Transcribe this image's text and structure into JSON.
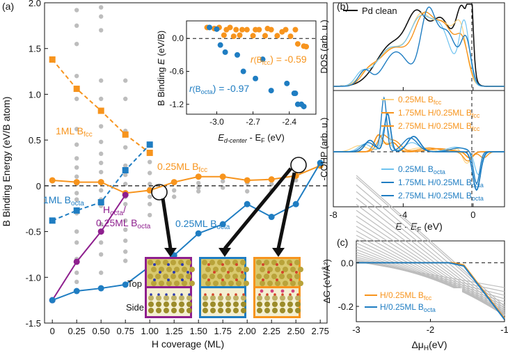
{
  "colors": {
    "orange": "#F7941D",
    "blue": "#1F7DC2",
    "purple": "#8E1F8E",
    "grey": "#BDBDBD",
    "black": "#111111",
    "lightorange": "#FFD27F",
    "lightblue": "#6FC3F0"
  },
  "panel_labels": {
    "a": "(a)",
    "b": "(b)",
    "c": "(c)"
  },
  "chart_data": [
    {
      "type": "scatter",
      "panel": "(a)",
      "xlabel": "H coverage (ML)",
      "ylabel": "B Binding Energy (eV/B atom)",
      "xlim": [
        -0.08,
        2.82
      ],
      "ylim": [
        -1.5,
        2.0
      ],
      "xticks": [
        "0",
        "0.25",
        "0.50",
        "0.75",
        "1.00",
        "1.25",
        "1.50",
        "1.75",
        "2.00",
        "2.25",
        "2.50",
        "2.75"
      ],
      "yticks": [
        "-1.5",
        "-1.0",
        "-0.5",
        "0",
        "0.5",
        "1.0",
        "1.5",
        "2.0"
      ],
      "series": [
        {
          "name": "1ML Bfcc",
          "label_main": "1ML B",
          "label_sub": "fcc",
          "color_key": "orange",
          "style": "dashed",
          "marker": "square",
          "x": [
            0,
            0.25,
            0.5,
            0.75,
            1.0
          ],
          "y": [
            1.38,
            1.06,
            0.82,
            0.56,
            0.36
          ]
        },
        {
          "name": "1ML Bocta",
          "label_main": "1ML B",
          "label_sub": "octa",
          "color_key": "blue",
          "style": "dashed",
          "marker": "square",
          "x": [
            0,
            0.25,
            0.5,
            0.75,
            1.0
          ],
          "y": [
            -0.38,
            -0.27,
            -0.18,
            0.17,
            0.45
          ]
        },
        {
          "name": "0.25ML Bfcc",
          "label_main": "0.25ML B",
          "label_sub": "fcc",
          "color_key": "orange",
          "style": "solid",
          "marker": "circle",
          "x": [
            0,
            0.25,
            0.5,
            0.75,
            1.0,
            1.25,
            1.5,
            1.75,
            2.0,
            2.25,
            2.5,
            2.75
          ],
          "y": [
            0.06,
            0.04,
            0.04,
            -0.08,
            -0.05,
            0.04,
            0.1,
            0.1,
            0.06,
            0.07,
            0.11,
            0.22
          ]
        },
        {
          "name": "Hocta/0.25ML Bocta",
          "label_main": "H",
          "label_sub": "octa",
          "label_tail": "/",
          "label_line2": "0.25ML B",
          "label_sub2": "octa",
          "color_key": "purple",
          "style": "solid",
          "marker": "circle",
          "x": [
            0,
            0.25,
            0.5,
            0.75
          ],
          "y": [
            -1.25,
            -0.83,
            -0.5,
            -0.1
          ]
        },
        {
          "name": "0.25ML Bocta",
          "label_main": "0.25ML B",
          "label_sub": "octa",
          "color_key": "blue",
          "style": "solid",
          "marker": "circle",
          "x": [
            0,
            0.25,
            0.5,
            0.75,
            1.0,
            1.25,
            1.5,
            1.75,
            2.0,
            2.25,
            2.5,
            2.75
          ],
          "y": [
            -1.25,
            -1.15,
            -1.12,
            -1.08,
            -0.88,
            -0.76,
            -0.52,
            -0.42,
            -0.2,
            -0.34,
            -0.2,
            0.25
          ]
        }
      ],
      "grey_scatter": [
        {
          "x": 0.25,
          "y": [
            1.92,
            1.75,
            1.55,
            1.2,
            0.95,
            0.62,
            0.45,
            0.3,
            0.2,
            0.1,
            0.02,
            -0.08,
            -0.15,
            -0.3,
            -0.5,
            -0.62,
            -0.8,
            -0.95,
            -1.05
          ]
        },
        {
          "x": 0.5,
          "y": [
            1.95,
            1.85,
            1.7,
            1.15,
            0.95,
            0.65,
            0.48,
            0.35,
            0.25,
            0.15,
            0.05,
            -0.05,
            -0.15,
            -0.22,
            -0.42,
            -0.62,
            -0.75,
            -0.95
          ]
        },
        {
          "x": 0.75,
          "y": [
            1.15,
            0.95,
            0.6,
            0.42,
            0.22,
            0.12,
            0.02,
            -0.12,
            -0.2,
            -0.38,
            -0.48,
            -0.6,
            -0.72,
            -0.82
          ]
        },
        {
          "x": 1.0,
          "y": [
            0.26,
            0.14,
            0.02,
            -0.03,
            -0.12,
            -0.2,
            -0.32
          ]
        },
        {
          "x": 1.25,
          "y": [
            0.04,
            -0.05,
            -0.12
          ]
        },
        {
          "x": 1.5,
          "y": [
            0.03,
            -0.02,
            -0.06
          ]
        },
        {
          "x": 1.75,
          "y": [
            0.05,
            -0.02
          ]
        },
        {
          "x": 2.0,
          "y": [
            0.03,
            -0.06
          ]
        },
        {
          "x": 2.25,
          "y": [
            0.02,
            -0.05
          ]
        },
        {
          "x": 2.5,
          "y": [
            0.06
          ]
        }
      ],
      "inset": {
        "type": "scatter",
        "xlabel_main": "E",
        "xlabel_sub": "d-center",
        "xlabel_mid": " - E",
        "xlabel_sub2": "F",
        "xlabel_tail": " (eV)",
        "ylabel_pre": "B Binding ",
        "ylabel_italic": "E",
        "ylabel_tail": " (eV/B)",
        "xlim": [
          -3.25,
          -2.18
        ],
        "ylim": [
          -1.38,
          0.32
        ],
        "xticks": [
          "-3.0",
          "-2.7",
          "-2.4"
        ],
        "yticks": [
          "0.0",
          "-0.6",
          "-1.2"
        ],
        "r_fcc_pre": "r",
        "r_fcc_mid": "(B",
        "r_fcc_sub": "fcc",
        "r_fcc_tail": ") = -0.59",
        "r_octa_pre": "r",
        "r_octa_mid": "(B",
        "r_octa_sub": "octa",
        "r_octa_tail": ") = -0.97",
        "fcc_points": {
          "x": [
            -3.08,
            -3.02,
            -2.98,
            -2.94,
            -2.92,
            -2.89,
            -2.86,
            -2.84,
            -2.81,
            -2.79,
            -2.75,
            -2.7,
            -2.68,
            -2.65,
            -2.6,
            -2.58,
            -2.55,
            -2.5,
            -2.46,
            -2.43,
            -2.39,
            -2.35,
            -2.33,
            -2.28,
            -2.26
          ],
          "y": [
            0.2,
            0.18,
            0.2,
            0.06,
            0.16,
            0.2,
            0.04,
            0.16,
            0.06,
            0.16,
            0.16,
            0.05,
            0.16,
            0.16,
            0.05,
            0.18,
            0.16,
            0.05,
            0.12,
            0.16,
            0.04,
            0.16,
            -0.1,
            -0.14,
            -0.15
          ]
        },
        "octa_points": {
          "x": [
            -3.06,
            -3.0,
            -2.97,
            -2.93,
            -2.83,
            -2.78,
            -2.68,
            -2.62,
            -2.55,
            -2.42,
            -2.36,
            -2.35,
            -2.33,
            -2.3,
            -2.28
          ],
          "y": [
            0.2,
            0.17,
            -0.12,
            -0.25,
            -0.3,
            -0.6,
            -0.73,
            -0.38,
            -0.95,
            -0.82,
            -1.0,
            -1.0,
            -1.2,
            -1.2,
            -1.24
          ]
        }
      },
      "callout_labels": {
        "top": "Top",
        "side": "Side"
      }
    },
    {
      "type": "line",
      "panel": "(b) top",
      "ylabel": "DOS (arb. u.)",
      "legend": [
        {
          "name": "Pd clean",
          "color_key": "black"
        }
      ],
      "xlim": [
        -8,
        1.8
      ]
    },
    {
      "type": "line",
      "panel": "(b) bottom",
      "ylabel": "-COHP (arb. u.)",
      "xlabel_italic": "E",
      "xlabel_mid": " - ",
      "xlabel_italic2": "E",
      "xlabel_sub": "F",
      "xlabel_tail": " (eV)",
      "xlim": [
        -8,
        1.8
      ],
      "xticks": [
        "-8",
        "-4",
        "0"
      ],
      "legend": [
        {
          "main": "0.25ML B",
          "sub": "fcc",
          "color_key": "lightorange"
        },
        {
          "main": "1.75ML H/0.25ML B",
          "sub": "fcc",
          "color_key": "orange"
        },
        {
          "main": "2.75ML H/0.25ML B",
          "sub": "fcc",
          "color_key": "orange"
        },
        {
          "main": "0.25ML B",
          "sub": "octa",
          "color_key": "lightblue"
        },
        {
          "main": "1.75ML H/0.25ML B",
          "sub": "octa",
          "color_key": "blue"
        },
        {
          "main": "2.75ML H/0.25ML B",
          "sub": "octa",
          "color_key": "blue"
        }
      ]
    },
    {
      "type": "line",
      "panel": "(c)",
      "ylabel_pre": "ΔG",
      "ylabel_tail": " (eV/Å²)",
      "xlabel_pre": "Δμ",
      "xlabel_sub": "H",
      "xlabel_tail": "(eV)",
      "xlim": [
        -3,
        -1
      ],
      "ylim": [
        -0.27,
        0.1
      ],
      "xticks": [
        "-3",
        "-2",
        "-1"
      ],
      "yticks": [
        "0.0",
        "-0.2"
      ],
      "legend": [
        {
          "main": "H/0.25ML B",
          "sub": "fcc",
          "color_key": "orange"
        },
        {
          "main": "H/0.25ML B",
          "sub": "octa",
          "color_key": "blue"
        }
      ],
      "series": [
        {
          "name": "H/0.25ML Bfcc",
          "color_key": "orange",
          "x": [
            -3,
            -1.7,
            -1.55,
            -1.0
          ],
          "y": [
            0.0,
            0.0,
            -0.01,
            -0.255
          ]
        },
        {
          "name": "H/0.25ML Bocta",
          "color_key": "blue",
          "x": [
            -3,
            -1.75,
            -1.55,
            -1.0
          ],
          "y": [
            0.0,
            0.0,
            -0.015,
            -0.26
          ]
        }
      ]
    }
  ]
}
